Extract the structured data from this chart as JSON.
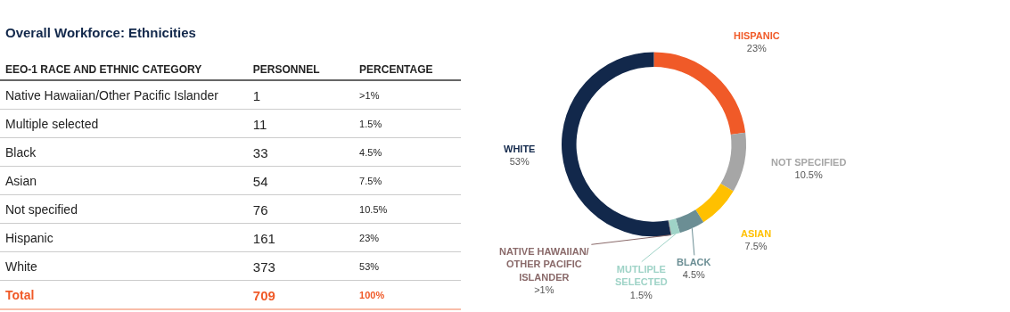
{
  "chart_data": [
    {
      "type": "other",
      "title": "Overall Workforce: Ethnicities",
      "annotations": [
        "EEO-1 RACE AND ETHNIC CATEGORY",
        "PERSONNEL",
        "PERCENTAGE",
        "Native Hawaiian/Other Pacific Islander",
        "1",
        ">1%",
        "Multiple selected",
        "11",
        "1.5%",
        "Black",
        "33",
        "4.5%",
        "Asian",
        "54",
        "7.5%",
        "Not specified",
        "76",
        "10.5%",
        "Hispanic",
        "161",
        "23%",
        "White",
        "373",
        "53%",
        "Total",
        "709",
        "100%"
      ]
    },
    {
      "type": "donut",
      "categories": [
        "HISPANIC",
        "NOT SPECIFIED",
        "ASIAN",
        "BLACK",
        "MUTLIPLE SELECTED",
        "NATIVE HAWAIIAN/ OTHER PACIFIC ISLANDER",
        "WHITE"
      ],
      "values": [
        23,
        10.5,
        7.5,
        4.5,
        1.5,
        0.1,
        53
      ],
      "value_labels": [
        "23%",
        "10.5%",
        "7.5%",
        "4.5%",
        "1.5%",
        ">1%",
        "53%"
      ],
      "colors": [
        "#f05a28",
        "#a6a6a6",
        "#ffc000",
        "#6b8e94",
        "#9fd3c7",
        "#8a6a6a",
        "#12284b"
      ]
    }
  ]
}
